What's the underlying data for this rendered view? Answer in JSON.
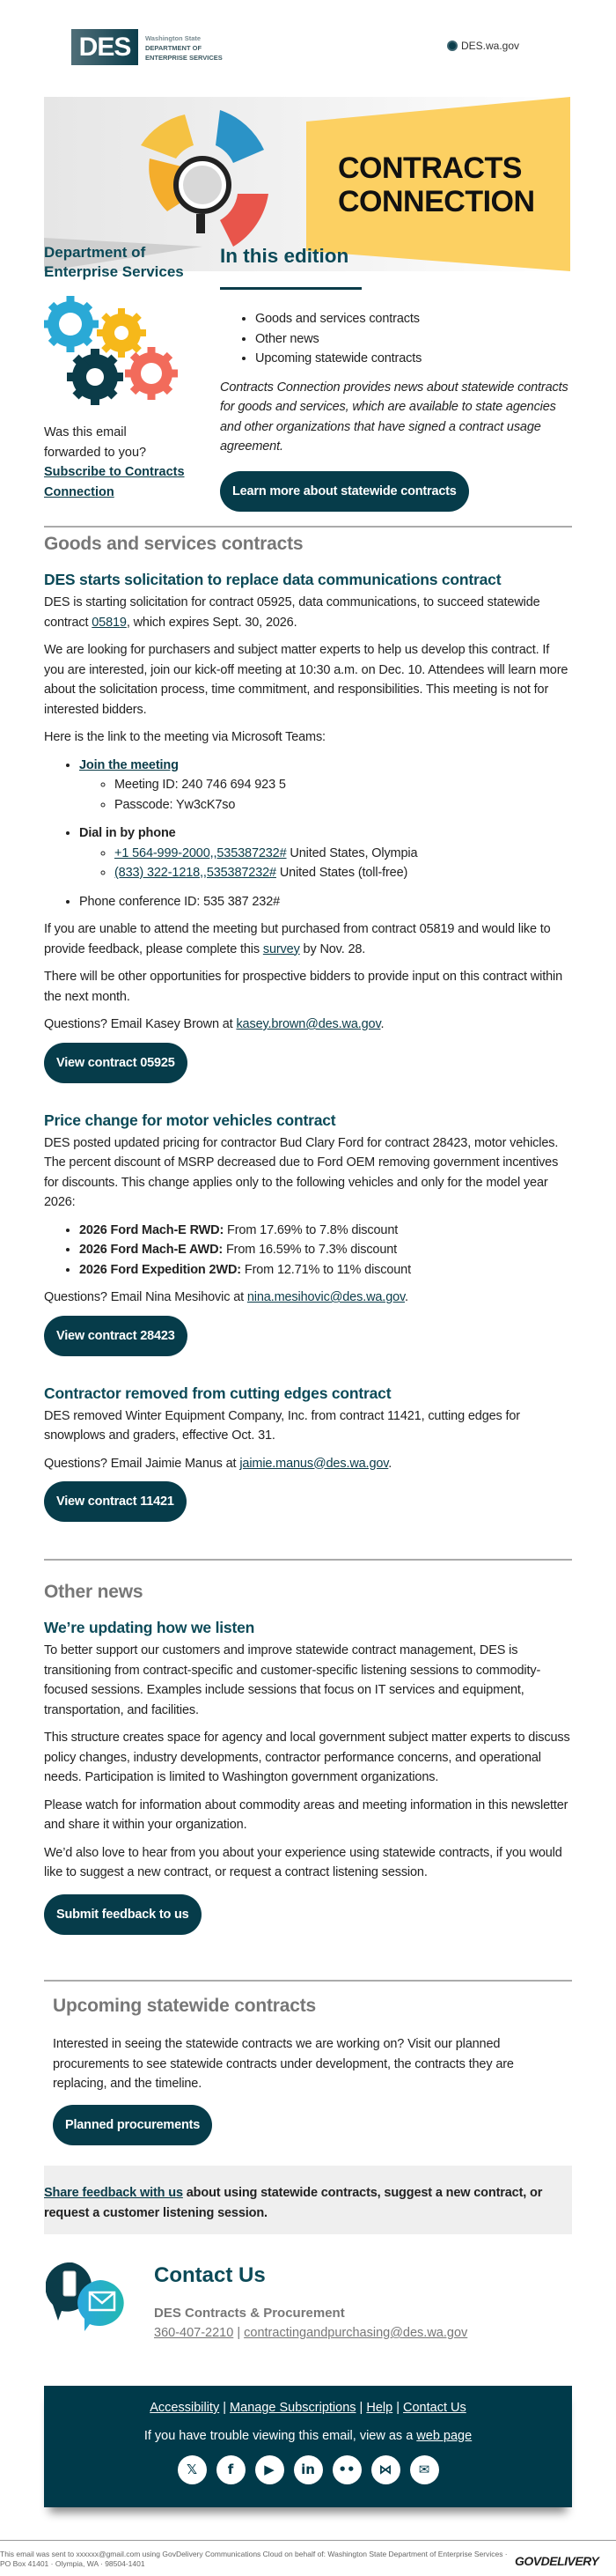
{
  "header": {
    "logo_text": "DES",
    "logo_line1": "Washington State",
    "logo_line2": "DEPARTMENT OF",
    "logo_line3": "ENTERPRISE SERVICES",
    "site_link": "DES.wa.gov"
  },
  "banner": {
    "title_line1": "CONTRACTS",
    "title_line2": "CONNECTION"
  },
  "sidebar": {
    "org_name": "Department of Enterprise Services",
    "forward_text": "Was this email forwarded to you?",
    "subscribe_link": "Subscribe to Contracts Connection"
  },
  "edition": {
    "title": "In this edition",
    "items": [
      "Goods and services contracts",
      "Other news",
      "Upcoming statewide contracts"
    ],
    "intro": "Contracts Connection provides news about statewide contracts for goods and services, which are available to state agencies and other organizations that have signed a contract usage agreement.",
    "button": "Learn more about statewide contracts"
  },
  "goods": {
    "title": "Goods and services contracts",
    "a1": {
      "title": "DES starts solicitation to replace data communications contract",
      "p1_pre": "DES is starting solicitation for contract 05925, data communications, to succeed statewide contract ",
      "p1_link": "05819",
      "p1_post": ", which expires Sept. 30, 2026.",
      "p2": "We are looking for purchasers and subject matter experts to help us develop this contract. If you are interested, join our kick-off meeting at 10:30 a.m. on Dec. 10. Attendees will learn more about the solicitation process, time commitment, and responsibilities. This meeting is not for interested bidders.",
      "p3": "Here is the link to the meeting via Microsoft Teams:",
      "join": "Join the meeting",
      "meeting_id": "Meeting ID: 240 746 694 923 5",
      "passcode": "Passcode: Yw3cK7so",
      "dial": "Dial in by phone",
      "phone1": "+1 564-999-2000,,535387232#",
      "phone1_loc": " United States, Olympia",
      "phone2": "(833) 322-1218,,535387232#",
      "phone2_loc": " United States (toll-free)",
      "conf": "Phone conference ID: 535 387 232#",
      "p4_pre": "If you are unable to attend the meeting but purchased from contract 05819 and would like to provide feedback, please complete this ",
      "p4_link": "survey",
      "p4_post": " by Nov. 28.",
      "p5": "There will be other opportunities for prospective bidders to provide input on this contract within the next month.",
      "q_pre": "Questions? Email Kasey Brown at ",
      "q_email": "kasey.brown@des.wa.gov",
      "button": "View contract 05925"
    },
    "a2": {
      "title": "Price change for motor vehicles contract",
      "p1": "DES posted updated pricing for contractor Bud Clary Ford for contract 28423, motor vehicles. The percent discount of MSRP decreased due to Ford OEM removing government incentives for discounts. This change applies only to the following vehicles and only for the model year 2026:",
      "items": [
        {
          "name": "2026 Ford Mach-E RWD:",
          "text": " From 17.69% to 7.8% discount"
        },
        {
          "name": "2026 Ford Mach-E AWD:",
          "text": " From 16.59% to 7.3% discount"
        },
        {
          "name": "2026 Ford Expedition 2WD:",
          "text": " From 12.71% to 11% discount"
        }
      ],
      "q_pre": "Questions? Email Nina Mesihovic at ",
      "q_email": "nina.mesihovic@des.wa.gov",
      "button": "View contract 28423"
    },
    "a3": {
      "title": "Contractor removed from cutting edges contract",
      "p1": "DES removed Winter Equipment Company, Inc. from contract 11421, cutting edges for snowplows and graders, effective Oct. 31.",
      "q_pre": "Questions? Email Jaimie Manus at ",
      "q_email": "jaimie.manus@des.wa.gov",
      "button": "View contract 11421"
    }
  },
  "other": {
    "title": "Other news",
    "a1": {
      "title": "We’re updating how we listen",
      "p1": "To better support our customers and improve statewide contract management, DES is transitioning from contract-specific and customer-specific listening sessions to commodity-focused sessions. Examples include sessions that focus on IT services and equipment, transportation, and facilities.",
      "p2": "This structure creates space for agency and local government subject matter experts to discuss policy changes, industry developments, contractor performance concerns, and operational needs. Participation is limited to Washington government organizations.",
      "p3": "Please watch for information about commodity areas and meeting information in this newsletter and share it within your organization.",
      "p4": "We’d also love to hear from you about your experience using statewide contracts, if you would like to suggest a new contract, or request a contract listening session.",
      "button": "Submit feedback to us"
    }
  },
  "upcoming": {
    "title": "Upcoming statewide contracts",
    "p1": "Interested in seeing the statewide contracts we are working on? Visit our planned procurements to see statewide contracts under development, the contracts they are replacing, and the timeline.",
    "button": "Planned procurements"
  },
  "feedback": {
    "link": "Share feedback with us",
    "text": " about using statewide contracts, suggest a new contract, or request a customer listening session."
  },
  "contact": {
    "title": "Contact Us",
    "org": "DES Contracts & Procurement",
    "phone": "360-407-2210",
    "sep": " | ",
    "email": "contractingandpurchasing@des.wa.gov"
  },
  "footer": {
    "links": [
      "Accessibility",
      "Manage Subscriptions",
      "Help",
      "Contact Us"
    ],
    "trouble_pre": "If you have trouble viewing this email, view as a ",
    "trouble_link": "web page",
    "social": [
      "x-icon",
      "facebook-icon",
      "youtube-icon",
      "linkedin-icon",
      "flickr-icon",
      "bluesky-icon",
      "email-icon"
    ]
  },
  "legal": {
    "text": "This email was sent to xxxxxx@gmail.com using GovDelivery Communications Cloud on behalf of: Washington State Department of Enterprise Services · PO Box 41401 · Olympia, WA · 98504-1401",
    "brand": "GOVDELIVERY"
  },
  "colors": {
    "primary": "#063c4a",
    "heading": "#0c4a58",
    "banner_yellow": "#fcd062",
    "section_gray": "#777777"
  }
}
